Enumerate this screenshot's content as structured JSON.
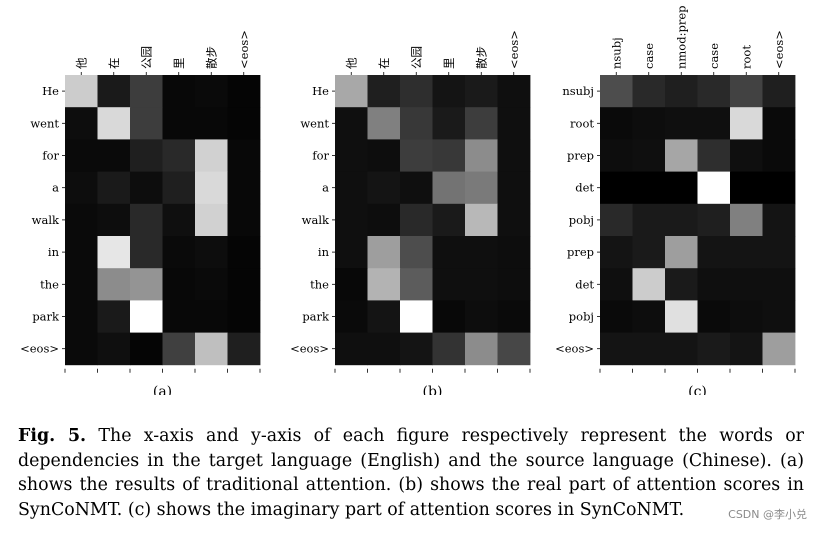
{
  "figure": {
    "caption_label": "Fig. 5.",
    "caption_text": "The x-axis and y-axis of each figure respectively represent the words or dependencies in the target language (English) and the source language (Chinese). (a) shows the results of traditional attention. (b) shows the real part of attention scores in SynCoNMT. (c) shows the imaginary part of attention scores in SynCoNMT.",
    "watermark": "CSDN @李小兑"
  },
  "chart_data": [
    {
      "type": "heatmap",
      "panel_label": "(a)",
      "x": [
        "他",
        "在",
        "公园",
        "里",
        "散步",
        "<eos>"
      ],
      "y": [
        "He",
        "went",
        "for",
        "a",
        "walk",
        "in",
        "the",
        "park",
        "<eos>"
      ],
      "values": [
        [
          0.8,
          0.1,
          0.24,
          0.03,
          0.04,
          0.02
        ],
        [
          0.05,
          0.85,
          0.24,
          0.03,
          0.03,
          0.02
        ],
        [
          0.04,
          0.04,
          0.12,
          0.16,
          0.82,
          0.03
        ],
        [
          0.05,
          0.1,
          0.05,
          0.12,
          0.85,
          0.03
        ],
        [
          0.04,
          0.05,
          0.16,
          0.06,
          0.82,
          0.03
        ],
        [
          0.04,
          0.9,
          0.16,
          0.04,
          0.05,
          0.02
        ],
        [
          0.04,
          0.55,
          0.58,
          0.03,
          0.04,
          0.02
        ],
        [
          0.04,
          0.1,
          1.0,
          0.03,
          0.03,
          0.02
        ],
        [
          0.04,
          0.06,
          0.02,
          0.25,
          0.75,
          0.12
        ]
      ]
    },
    {
      "type": "heatmap",
      "panel_label": "(b)",
      "x": [
        "他",
        "在",
        "公园",
        "里",
        "散步",
        "<eos>"
      ],
      "y": [
        "He",
        "went",
        "for",
        "a",
        "walk",
        "in",
        "the",
        "park",
        "<eos>"
      ],
      "values": [
        [
          0.66,
          0.12,
          0.18,
          0.08,
          0.1,
          0.06
        ],
        [
          0.06,
          0.5,
          0.22,
          0.1,
          0.24,
          0.06
        ],
        [
          0.06,
          0.05,
          0.24,
          0.22,
          0.55,
          0.06
        ],
        [
          0.06,
          0.08,
          0.06,
          0.45,
          0.48,
          0.06
        ],
        [
          0.06,
          0.05,
          0.16,
          0.1,
          0.72,
          0.06
        ],
        [
          0.06,
          0.62,
          0.3,
          0.06,
          0.06,
          0.05
        ],
        [
          0.03,
          0.7,
          0.36,
          0.06,
          0.06,
          0.05
        ],
        [
          0.04,
          0.08,
          1.0,
          0.03,
          0.05,
          0.04
        ],
        [
          0.06,
          0.06,
          0.08,
          0.2,
          0.55,
          0.28
        ]
      ]
    },
    {
      "type": "heatmap",
      "panel_label": "(c)",
      "x": [
        "nsubj",
        "case",
        "nmod:prep",
        "case",
        "root",
        "<eos>"
      ],
      "y": [
        "nsubj",
        "root",
        "prep",
        "det",
        "pobj",
        "prep",
        "det",
        "pobj",
        "<eos>"
      ],
      "values": [
        [
          0.3,
          0.16,
          0.12,
          0.16,
          0.26,
          0.12
        ],
        [
          0.04,
          0.05,
          0.06,
          0.06,
          0.85,
          0.04
        ],
        [
          0.05,
          0.06,
          0.65,
          0.18,
          0.06,
          0.04
        ],
        [
          0.0,
          0.0,
          0.0,
          1.0,
          0.0,
          0.0
        ],
        [
          0.16,
          0.1,
          0.1,
          0.12,
          0.5,
          0.08
        ],
        [
          0.08,
          0.1,
          0.62,
          0.08,
          0.08,
          0.08
        ],
        [
          0.06,
          0.8,
          0.1,
          0.06,
          0.06,
          0.06
        ],
        [
          0.04,
          0.05,
          0.88,
          0.04,
          0.05,
          0.06
        ],
        [
          0.08,
          0.08,
          0.08,
          0.1,
          0.08,
          0.62
        ]
      ]
    }
  ]
}
